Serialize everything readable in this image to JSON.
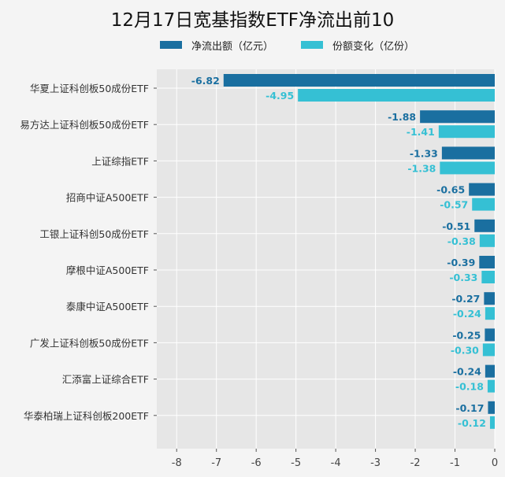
{
  "chart_data": {
    "type": "bar",
    "orientation": "horizontal",
    "title": "12月17日宽基指数ETF净流出前10",
    "categories": [
      "华夏上证科创板50成份ETF",
      "易方达上证科创板50成份ETF",
      "上证综指ETF",
      "招商中证A500ETF",
      "工银上证科创50成份ETF",
      "摩根中证A500ETF",
      "泰康中证A500ETF",
      "广发上证科创板50成份ETF",
      "汇添富上证综合ETF",
      "华泰柏瑞上证科创板200ETF"
    ],
    "series": [
      {
        "name": "净流出额（亿元）",
        "color": "#1a6fa0",
        "values": [
          -6.82,
          -1.88,
          -1.33,
          -0.65,
          -0.51,
          -0.39,
          -0.27,
          -0.25,
          -0.24,
          -0.17
        ],
        "labels": [
          "-6.82",
          "-1.88",
          "-1.33",
          "-0.65",
          "-0.51",
          "-0.39",
          "-0.27",
          "-0.25",
          "-0.24",
          "-0.17"
        ]
      },
      {
        "name": "份额变化（亿份）",
        "color": "#35c0d4",
        "values": [
          -4.95,
          -1.41,
          -1.38,
          -0.57,
          -0.38,
          -0.33,
          -0.24,
          -0.3,
          -0.18,
          -0.12
        ],
        "labels": [
          "-4.95",
          "-1.41",
          "-1.38",
          "-0.57",
          "-0.38",
          "-0.33",
          "-0.24",
          "-0.30",
          "-0.18",
          "-0.12"
        ]
      }
    ],
    "xticks": [
      "-8",
      "-7",
      "-6",
      "-5",
      "-4",
      "-3",
      "-2",
      "-1",
      "0"
    ],
    "xlim": [
      -8.5,
      0
    ],
    "grid": true,
    "legend": "top-center",
    "xlabel": "",
    "ylabel": ""
  }
}
